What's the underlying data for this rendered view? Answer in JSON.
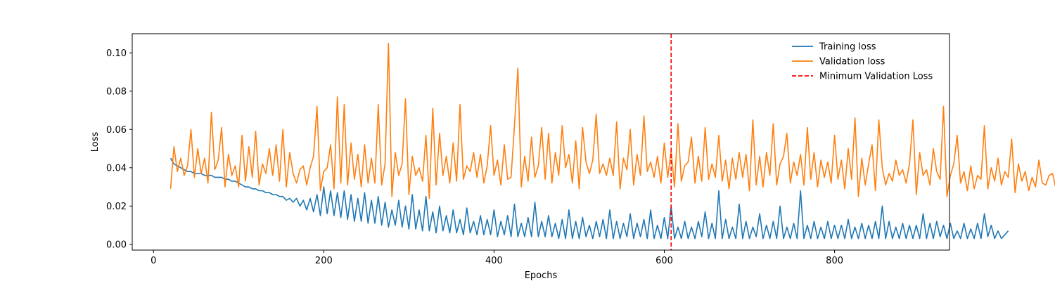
{
  "chart_data": {
    "type": "line",
    "title": "",
    "xlabel": "Epochs",
    "ylabel": "Loss",
    "xlim": [
      -25,
      935
    ],
    "ylim": [
      -0.003,
      0.11
    ],
    "x_ticks": [
      0,
      200,
      400,
      600,
      800
    ],
    "x_tick_labels": [
      "0",
      "200",
      "400",
      "600",
      "800"
    ],
    "y_ticks": [
      0.0,
      0.02,
      0.04,
      0.06,
      0.08,
      0.1
    ],
    "y_tick_labels": [
      "0.00",
      "0.02",
      "0.04",
      "0.06",
      "0.08",
      "0.10"
    ],
    "grid": false,
    "legend_position": "top-right",
    "x_start": 20,
    "x_step": 4,
    "series": [
      {
        "name": "Training loss",
        "color": "#1f77b4",
        "style": "solid",
        "values": [
          0.045,
          0.042,
          0.041,
          0.04,
          0.039,
          0.038,
          0.038,
          0.037,
          0.037,
          0.037,
          0.036,
          0.036,
          0.036,
          0.035,
          0.035,
          0.035,
          0.034,
          0.034,
          0.033,
          0.033,
          0.032,
          0.031,
          0.03,
          0.03,
          0.029,
          0.029,
          0.028,
          0.028,
          0.027,
          0.027,
          0.026,
          0.026,
          0.025,
          0.025,
          0.023,
          0.024,
          0.022,
          0.024,
          0.02,
          0.023,
          0.018,
          0.024,
          0.017,
          0.026,
          0.015,
          0.03,
          0.016,
          0.028,
          0.015,
          0.027,
          0.014,
          0.028,
          0.013,
          0.026,
          0.012,
          0.024,
          0.012,
          0.027,
          0.011,
          0.023,
          0.011,
          0.025,
          0.01,
          0.022,
          0.009,
          0.018,
          0.01,
          0.023,
          0.009,
          0.02,
          0.008,
          0.026,
          0.008,
          0.018,
          0.007,
          0.025,
          0.007,
          0.017,
          0.006,
          0.02,
          0.007,
          0.015,
          0.006,
          0.018,
          0.006,
          0.013,
          0.005,
          0.019,
          0.006,
          0.012,
          0.005,
          0.015,
          0.005,
          0.013,
          0.005,
          0.018,
          0.004,
          0.012,
          0.005,
          0.015,
          0.004,
          0.021,
          0.004,
          0.011,
          0.004,
          0.014,
          0.004,
          0.022,
          0.004,
          0.012,
          0.004,
          0.015,
          0.004,
          0.011,
          0.003,
          0.013,
          0.003,
          0.018,
          0.003,
          0.012,
          0.003,
          0.014,
          0.004,
          0.01,
          0.003,
          0.012,
          0.004,
          0.013,
          0.003,
          0.018,
          0.003,
          0.012,
          0.003,
          0.011,
          0.004,
          0.016,
          0.003,
          0.011,
          0.004,
          0.013,
          0.003,
          0.018,
          0.003,
          0.01,
          0.003,
          0.014,
          0.003,
          0.02,
          0.003,
          0.009,
          0.003,
          0.012,
          0.003,
          0.009,
          0.003,
          0.012,
          0.004,
          0.017,
          0.003,
          0.011,
          0.003,
          0.028,
          0.003,
          0.013,
          0.003,
          0.009,
          0.003,
          0.021,
          0.003,
          0.012,
          0.003,
          0.009,
          0.004,
          0.016,
          0.003,
          0.01,
          0.003,
          0.012,
          0.003,
          0.02,
          0.003,
          0.009,
          0.003,
          0.011,
          0.003,
          0.028,
          0.003,
          0.01,
          0.003,
          0.012,
          0.003,
          0.009,
          0.003,
          0.012,
          0.003,
          0.01,
          0.003,
          0.01,
          0.003,
          0.013,
          0.003,
          0.009,
          0.003,
          0.011,
          0.003,
          0.01,
          0.003,
          0.012,
          0.003,
          0.02,
          0.003,
          0.012,
          0.003,
          0.009,
          0.003,
          0.011,
          0.003,
          0.01,
          0.003,
          0.01,
          0.003,
          0.016,
          0.003,
          0.011,
          0.003,
          0.012,
          0.004,
          0.01,
          0.003,
          0.011,
          0.003,
          0.007,
          0.003,
          0.011,
          0.003,
          0.008,
          0.003,
          0.011,
          0.003,
          0.016,
          0.004,
          0.01,
          0.003,
          0.007,
          0.003,
          0.005,
          0.007
        ]
      },
      {
        "name": "Validation loss",
        "color": "#ff7f0e",
        "style": "solid",
        "values": [
          0.029,
          0.051,
          0.038,
          0.045,
          0.036,
          0.041,
          0.06,
          0.035,
          0.05,
          0.037,
          0.045,
          0.032,
          0.069,
          0.039,
          0.044,
          0.061,
          0.03,
          0.047,
          0.036,
          0.041,
          0.03,
          0.057,
          0.033,
          0.051,
          0.035,
          0.059,
          0.031,
          0.042,
          0.037,
          0.05,
          0.036,
          0.052,
          0.033,
          0.06,
          0.03,
          0.048,
          0.037,
          0.032,
          0.039,
          0.041,
          0.031,
          0.04,
          0.046,
          0.072,
          0.028,
          0.038,
          0.04,
          0.052,
          0.029,
          0.077,
          0.032,
          0.073,
          0.031,
          0.053,
          0.034,
          0.047,
          0.03,
          0.052,
          0.032,
          0.045,
          0.032,
          0.073,
          0.031,
          0.042,
          0.105,
          0.025,
          0.048,
          0.036,
          0.042,
          0.076,
          0.026,
          0.046,
          0.036,
          0.04,
          0.033,
          0.057,
          0.024,
          0.071,
          0.031,
          0.058,
          0.036,
          0.046,
          0.032,
          0.053,
          0.033,
          0.073,
          0.034,
          0.041,
          0.038,
          0.048,
          0.035,
          0.047,
          0.032,
          0.041,
          0.062,
          0.036,
          0.044,
          0.031,
          0.052,
          0.034,
          0.035,
          0.062,
          0.092,
          0.03,
          0.046,
          0.033,
          0.056,
          0.035,
          0.041,
          0.061,
          0.034,
          0.058,
          0.032,
          0.048,
          0.036,
          0.062,
          0.04,
          0.047,
          0.032,
          0.054,
          0.029,
          0.061,
          0.043,
          0.037,
          0.044,
          0.068,
          0.037,
          0.042,
          0.036,
          0.045,
          0.036,
          0.064,
          0.029,
          0.045,
          0.039,
          0.06,
          0.031,
          0.047,
          0.036,
          0.067,
          0.038,
          0.043,
          0.035,
          0.046,
          0.032,
          0.053,
          0.035,
          0.049,
          0.03,
          0.063,
          0.033,
          0.041,
          0.043,
          0.056,
          0.032,
          0.046,
          0.033,
          0.061,
          0.034,
          0.042,
          0.035,
          0.057,
          0.033,
          0.044,
          0.029,
          0.045,
          0.034,
          0.048,
          0.035,
          0.047,
          0.028,
          0.065,
          0.031,
          0.046,
          0.03,
          0.048,
          0.036,
          0.063,
          0.031,
          0.042,
          0.046,
          0.058,
          0.032,
          0.043,
          0.036,
          0.047,
          0.031,
          0.061,
          0.034,
          0.048,
          0.03,
          0.044,
          0.035,
          0.043,
          0.032,
          0.057,
          0.034,
          0.044,
          0.029,
          0.05,
          0.034,
          0.066,
          0.025,
          0.045,
          0.031,
          0.042,
          0.052,
          0.028,
          0.065,
          0.04,
          0.031,
          0.037,
          0.033,
          0.044,
          0.036,
          0.039,
          0.032,
          0.042,
          0.065,
          0.026,
          0.048,
          0.036,
          0.039,
          0.031,
          0.05,
          0.038,
          0.034,
          0.072,
          0.025,
          0.036,
          0.042,
          0.057,
          0.032,
          0.038,
          0.028,
          0.041,
          0.029,
          0.036,
          0.034,
          0.062,
          0.029,
          0.04,
          0.033,
          0.045,
          0.031,
          0.038,
          0.035,
          0.055,
          0.027,
          0.042,
          0.033,
          0.038,
          0.028,
          0.035,
          0.03,
          0.044,
          0.032,
          0.031,
          0.036,
          0.037,
          0.029,
          0.03
        ]
      },
      {
        "name": "Minimum Validation Loss",
        "color": "#ff0000",
        "style": "dashed",
        "x_value": 608
      }
    ]
  }
}
